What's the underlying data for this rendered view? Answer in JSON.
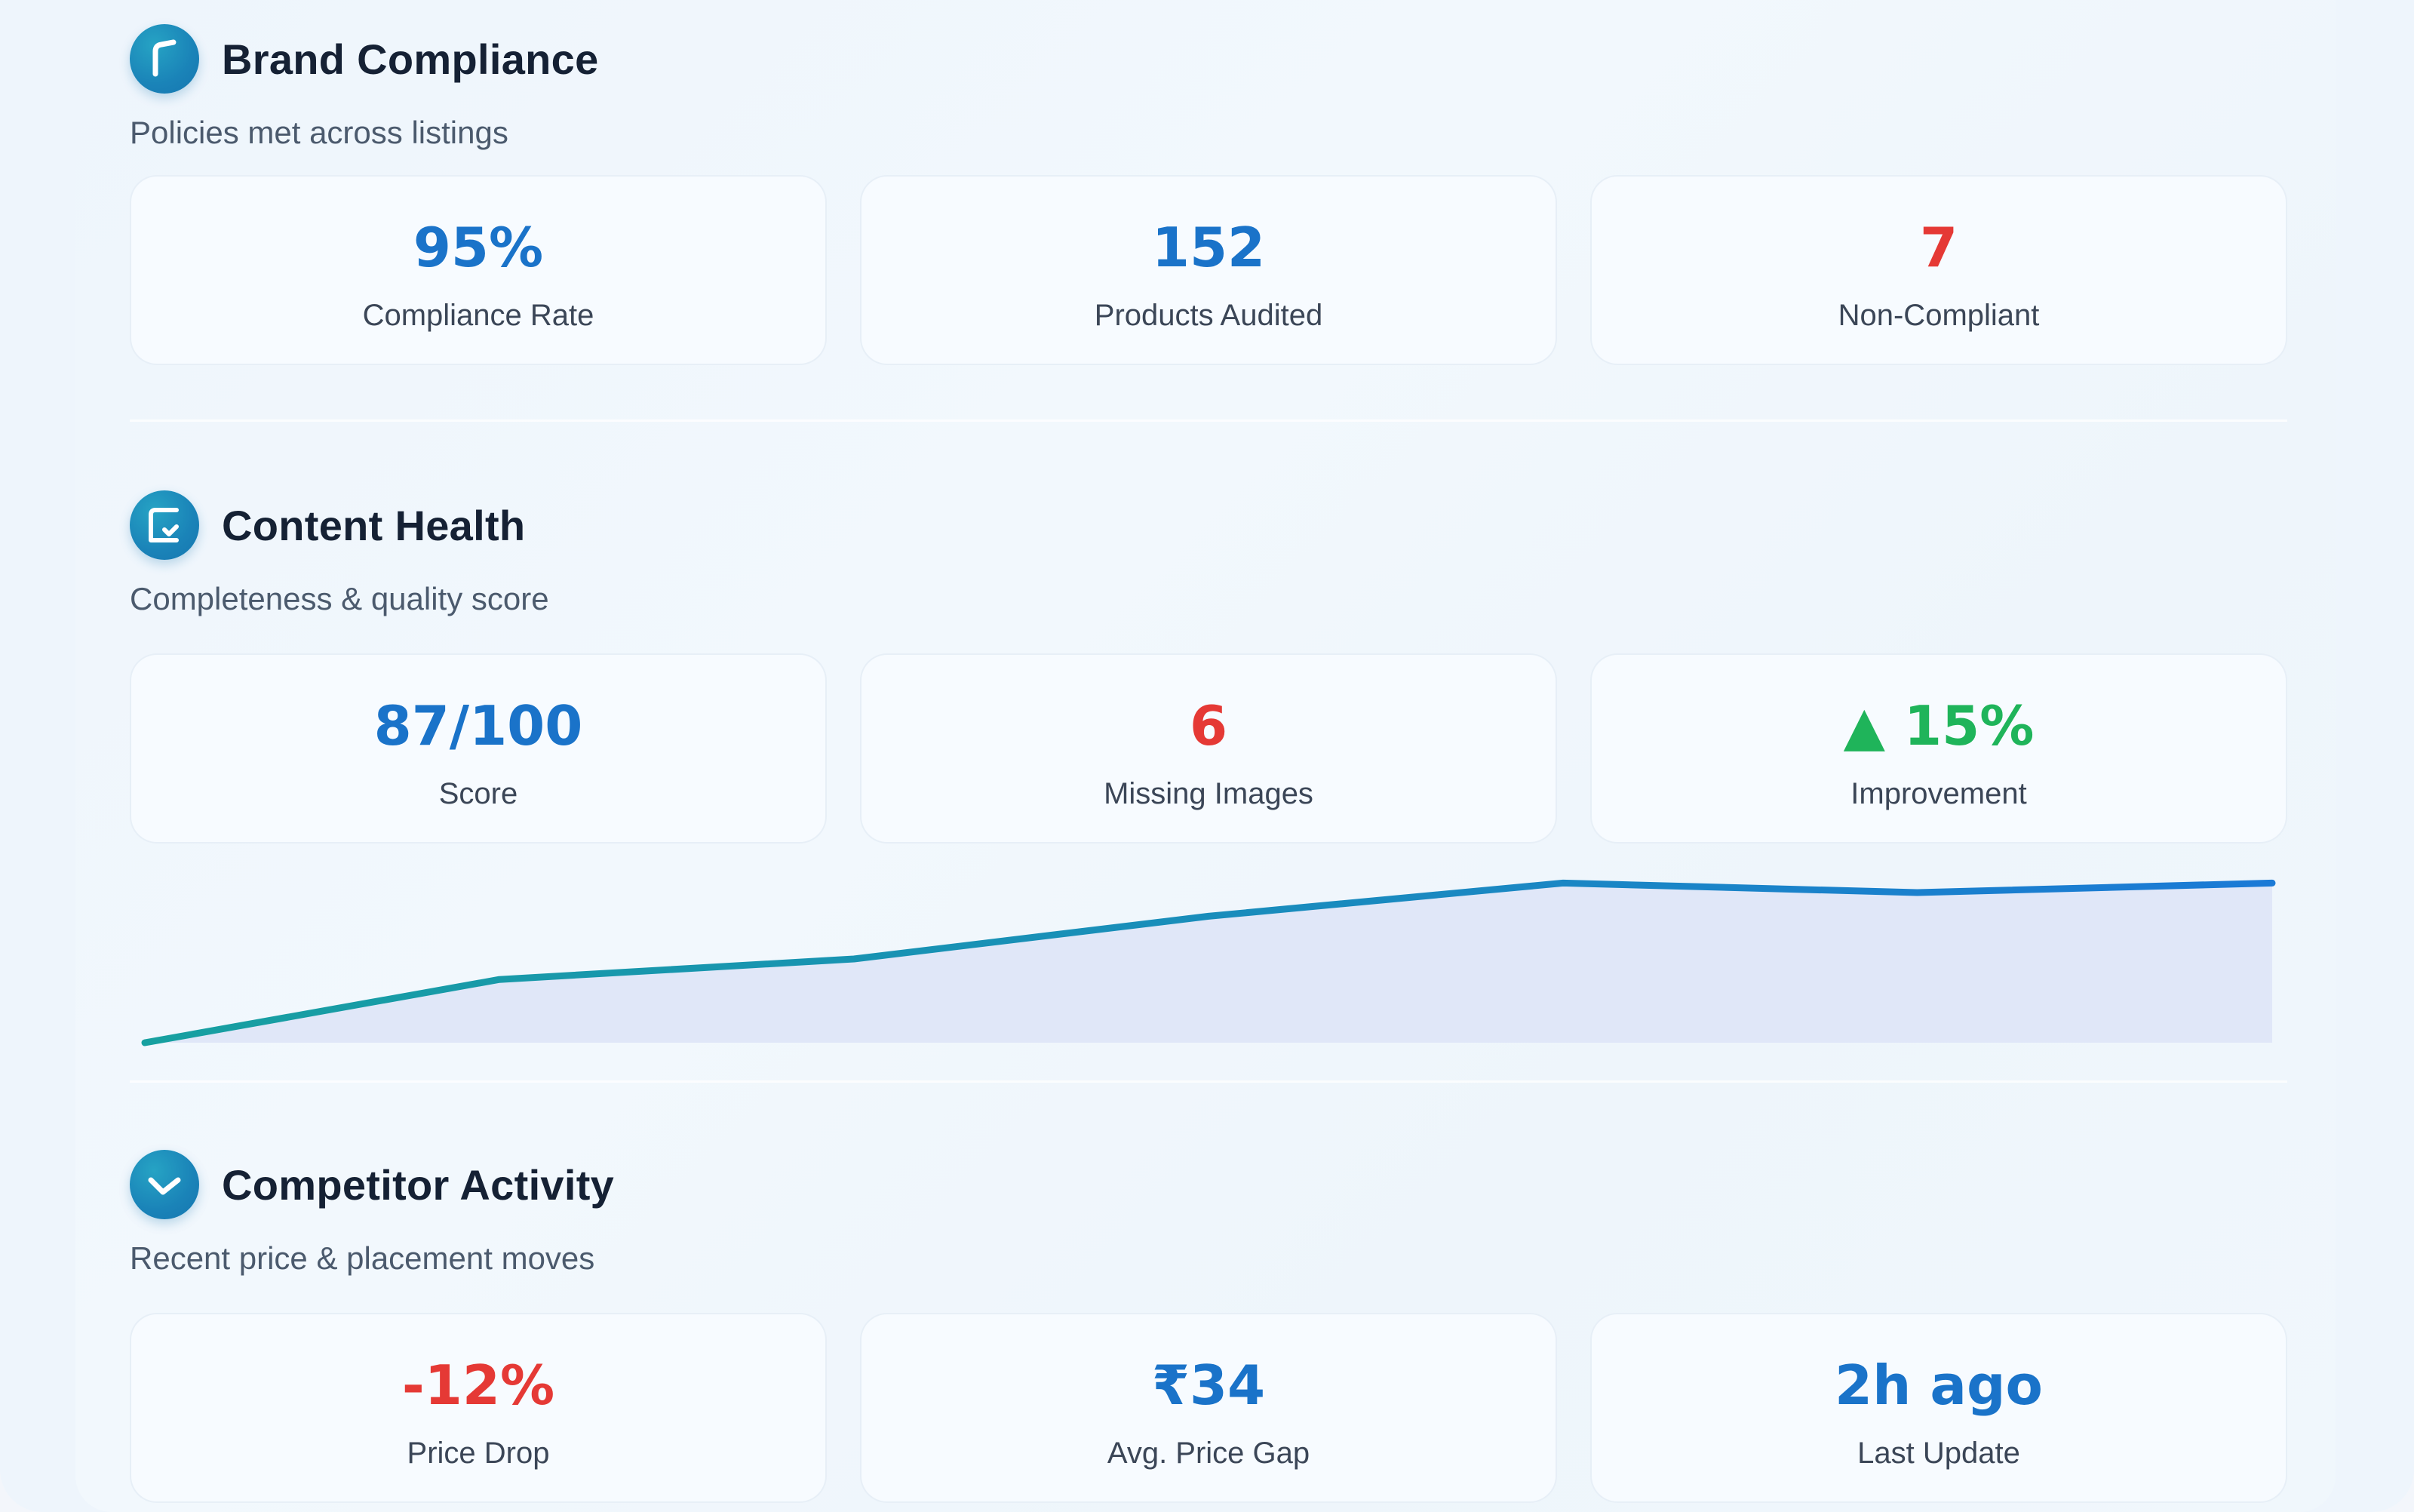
{
  "colors": {
    "blue": "#1a73c9",
    "red": "#e53935",
    "green": "#1fb45a"
  },
  "brand": {
    "title": "Brand Compliance",
    "subtitle": "Policies met across listings",
    "icon": "shield-icon",
    "cards": [
      {
        "value": "95%",
        "label": "Compliance Rate"
      },
      {
        "value": "152",
        "label": "Products Audited"
      },
      {
        "value": "7",
        "label": "Non-Compliant"
      }
    ]
  },
  "content": {
    "title": "Content Health",
    "subtitle": "Completeness & quality score",
    "icon": "document-check-icon",
    "cards": [
      {
        "value": "87/100",
        "label": "Score"
      },
      {
        "value": "6",
        "label": "Missing Images"
      },
      {
        "value": "▲ 15%",
        "label": "Improvement"
      }
    ]
  },
  "competitor": {
    "title": "Competitor Activity",
    "subtitle": "Recent price & placement moves",
    "icon": "trend-down-icon",
    "cards": [
      {
        "value": "-12%",
        "label": "Price Drop"
      },
      {
        "value": "₹34",
        "label": "Avg. Price Gap"
      },
      {
        "value": "2h ago",
        "label": "Last Update"
      }
    ]
  },
  "chart_data": {
    "type": "area",
    "title": "",
    "xlabel": "",
    "ylabel": "",
    "x": [
      1,
      2,
      3,
      4,
      5,
      6,
      7
    ],
    "values": [
      0,
      40,
      53,
      80,
      101,
      95,
      101
    ],
    "ylim": [
      0,
      105
    ]
  }
}
